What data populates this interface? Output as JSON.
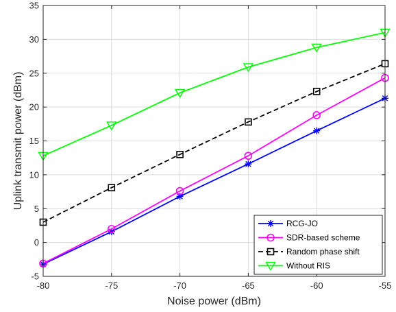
{
  "chart_data": {
    "type": "line",
    "xlabel": "Noise power (dBm)",
    "ylabel": "Uplink transmit power (dBm)",
    "xlim": [
      -80,
      -55
    ],
    "ylim": [
      -5,
      35
    ],
    "x": [
      -80,
      -75,
      -70,
      -65,
      -60,
      -55
    ],
    "xticks": [
      -80,
      -75,
      -70,
      -65,
      -60,
      -55
    ],
    "yticks": [
      -5,
      0,
      5,
      10,
      15,
      20,
      25,
      30,
      35
    ],
    "xtick_labels": [
      "-80",
      "-75",
      "-70",
      "-65",
      "-60",
      "-55"
    ],
    "ytick_labels": [
      "-5",
      "0",
      "5",
      "10",
      "15",
      "20",
      "25",
      "30",
      "35"
    ],
    "grid": true,
    "legend_position": "bottom-right",
    "series": [
      {
        "name": "RCG-JO",
        "values": [
          -3.2,
          1.6,
          6.8,
          11.6,
          16.5,
          21.3
        ],
        "color": "#0000ff",
        "marker": "asterisk",
        "line": "solid"
      },
      {
        "name": "SDR-based scheme",
        "values": [
          -3.1,
          2.0,
          7.6,
          12.8,
          18.8,
          24.3
        ],
        "color": "#ff00ff",
        "marker": "circle",
        "line": "solid"
      },
      {
        "name": "Random phase shift",
        "values": [
          3.0,
          8.1,
          13.0,
          17.8,
          22.3,
          26.4
        ],
        "color": "#000000",
        "marker": "square",
        "line": "dashed"
      },
      {
        "name": "Without RIS",
        "values": [
          12.8,
          17.3,
          22.1,
          25.9,
          28.8,
          31.0
        ],
        "color": "#00ff00",
        "marker": "triangle-down",
        "line": "solid"
      }
    ]
  }
}
